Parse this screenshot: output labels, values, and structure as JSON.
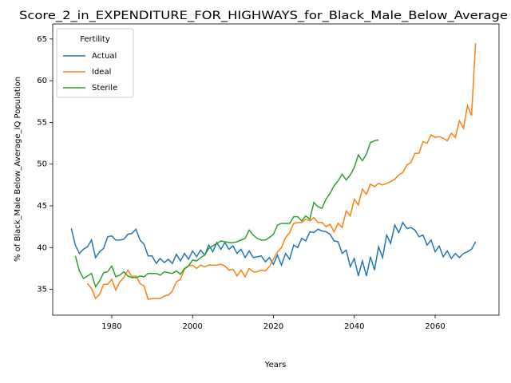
{
  "chart_data": {
    "type": "line",
    "title": "Score_2_in_EXPENDITURE_FOR_HIGHWAYS_for_Black_Male_Below_Average",
    "x_label": "Years",
    "y_label": "% of Black_Male Below_Average_IQ Population",
    "legend_title": "Fertility",
    "legend_position": "upper left",
    "grid": false,
    "x": [
      1970,
      1971,
      1972,
      1973,
      1974,
      1975,
      1976,
      1977,
      1978,
      1979,
      1980,
      1981,
      1982,
      1983,
      1984,
      1985,
      1986,
      1987,
      1988,
      1989,
      1990,
      1991,
      1992,
      1993,
      1994,
      1995,
      1996,
      1997,
      1998,
      1999,
      2000,
      2001,
      2002,
      2003,
      2004,
      2005,
      2006,
      2007,
      2008,
      2009,
      2010,
      2011,
      2012,
      2013,
      2014,
      2015,
      2016,
      2017,
      2018,
      2019,
      2020,
      2021,
      2022,
      2023,
      2024,
      2025,
      2026,
      2027,
      2028,
      2029,
      2030,
      2031,
      2032,
      2033,
      2034,
      2035,
      2036,
      2037,
      2038,
      2039,
      2040,
      2041,
      2042,
      2043,
      2044,
      2045,
      2046,
      2047,
      2048,
      2049,
      2050,
      2051,
      2052,
      2053,
      2054,
      2055,
      2056,
      2057,
      2058,
      2059,
      2060,
      2061,
      2062,
      2063,
      2064,
      2065,
      2066,
      2067,
      2068,
      2069,
      2070
    ],
    "series": [
      {
        "name": "Actual",
        "color": "#1f77b4",
        "values": [
          42.3,
          40.3,
          39.3,
          39.8,
          40.1,
          40.9,
          38.8,
          39.5,
          39.9,
          41.3,
          41.4,
          40.9,
          40.9,
          41.0,
          41.6,
          41.7,
          42.2,
          40.9,
          40.4,
          39.0,
          39.0,
          38.1,
          38.7,
          38.2,
          38.6,
          38.1,
          39.2,
          38.4,
          39.3,
          38.6,
          39.6,
          38.9,
          39.7,
          39.1,
          40.3,
          39.5,
          40.6,
          39.8,
          40.6,
          39.8,
          40.2,
          39.3,
          39.8,
          38.8,
          39.6,
          38.8,
          38.9,
          39.0,
          38.3,
          38.8,
          38.0,
          39.1,
          37.9,
          39.3,
          38.6,
          40.3,
          40.0,
          41.1,
          40.8,
          41.9,
          41.8,
          42.2,
          42.0,
          41.9,
          41.6,
          40.8,
          40.7,
          39.3,
          39.7,
          37.7,
          38.7,
          36.6,
          38.4,
          36.6,
          38.9,
          37.3,
          40.1,
          38.8,
          41.5,
          40.5,
          42.7,
          41.8,
          43.0,
          42.3,
          42.4,
          42.1,
          41.3,
          41.5,
          40.3,
          40.9,
          39.5,
          40.2,
          38.9,
          39.6,
          38.7,
          39.3,
          38.8,
          39.3,
          39.5,
          39.8,
          40.7
        ]
      },
      {
        "name": "Ideal",
        "color": "#ff7f0e",
        "values": [
          null,
          null,
          null,
          null,
          35.7,
          35.1,
          33.9,
          34.4,
          35.6,
          35.6,
          36.2,
          34.9,
          35.9,
          36.4,
          37.3,
          36.5,
          36.6,
          35.7,
          35.4,
          33.8,
          33.9,
          33.9,
          33.9,
          34.2,
          34.3,
          34.8,
          35.9,
          36.2,
          37.4,
          37.8,
          37.9,
          37.5,
          37.9,
          37.7,
          37.9,
          37.9,
          37.9,
          38.0,
          37.8,
          37.3,
          37.4,
          36.6,
          37.3,
          36.5,
          37.5,
          37.1,
          37.1,
          37.3,
          37.2,
          37.7,
          38.6,
          39.5,
          40.0,
          41.2,
          41.8,
          42.9,
          43.0,
          43.0,
          43.4,
          43.2,
          43.6,
          43.0,
          43.0,
          42.5,
          42.8,
          41.9,
          42.9,
          42.4,
          44.4,
          43.8,
          45.8,
          45.1,
          47.0,
          46.4,
          47.6,
          47.3,
          47.7,
          47.5,
          47.7,
          47.9,
          48.2,
          48.7,
          49.0,
          49.9,
          50.2,
          51.3,
          51.3,
          52.7,
          52.5,
          53.5,
          53.2,
          53.3,
          53.1,
          52.8,
          53.7,
          53.2,
          55.2,
          54.3,
          57.0,
          55.8,
          64.5
        ]
      },
      {
        "name": "Sterile",
        "color": "#2ca02c",
        "values": [
          null,
          39.0,
          37.2,
          36.3,
          36.6,
          36.9,
          35.3,
          36.0,
          37.0,
          37.1,
          37.8,
          36.5,
          36.7,
          37.1,
          36.6,
          36.4,
          36.4,
          36.6,
          36.5,
          36.9,
          36.9,
          36.9,
          36.7,
          37.1,
          37.0,
          36.9,
          37.2,
          36.8,
          37.5,
          37.8,
          38.5,
          38.4,
          38.8,
          39.1,
          39.9,
          40.2,
          40.5,
          40.8,
          40.7,
          40.6,
          40.6,
          40.7,
          40.9,
          41.1,
          42.1,
          41.5,
          41.1,
          40.9,
          40.9,
          41.2,
          41.6,
          42.7,
          42.9,
          42.9,
          42.9,
          43.7,
          43.7,
          43.2,
          43.8,
          43.4,
          45.4,
          44.9,
          44.7,
          45.8,
          46.5,
          47.4,
          48.0,
          48.8,
          48.1,
          48.7,
          49.6,
          51.1,
          50.4,
          51.2,
          52.6,
          52.8,
          52.9,
          null,
          null,
          null,
          null,
          null,
          null,
          null,
          null,
          null,
          null,
          null,
          null,
          null,
          null,
          null,
          null,
          null,
          null,
          null,
          null,
          null,
          null,
          null,
          null
        ]
      }
    ],
    "xlim": [
      1965.4,
      2075.8
    ],
    "xticks": [
      1980,
      2000,
      2020,
      2040,
      2060
    ],
    "ylim": [
      31.9,
      66.8
    ],
    "yticks": [
      35,
      40,
      45,
      50,
      55,
      60,
      65
    ]
  }
}
